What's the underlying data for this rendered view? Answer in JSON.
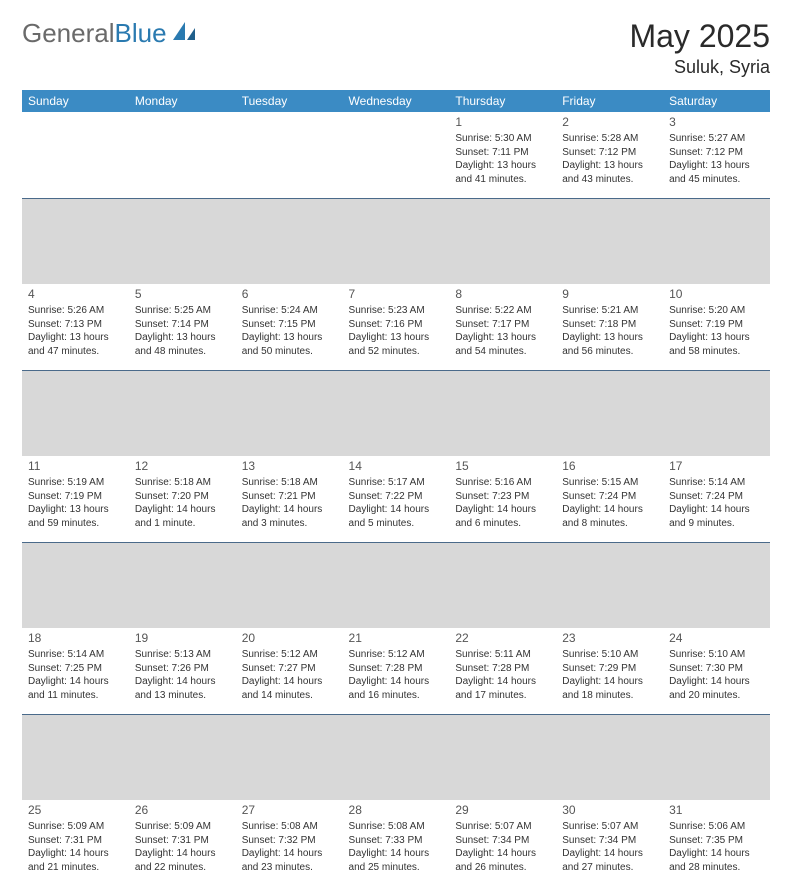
{
  "brand": {
    "part1": "General",
    "part2": "Blue"
  },
  "title": "May 2025",
  "location": "Suluk, Syria",
  "colors": {
    "header_bg": "#3b8bc4",
    "header_text": "#ffffff",
    "sep_bg": "#d8d8d8",
    "sep_border": "#4a6a8a",
    "brand_gray": "#6a6a6a",
    "brand_blue": "#2a7ab0",
    "text": "#333333",
    "page_bg": "#ffffff"
  },
  "day_headers": [
    "Sunday",
    "Monday",
    "Tuesday",
    "Wednesday",
    "Thursday",
    "Friday",
    "Saturday"
  ],
  "weeks": [
    [
      null,
      null,
      null,
      null,
      {
        "n": "1",
        "sr": "5:30 AM",
        "ss": "7:11 PM",
        "dl": "13 hours and 41 minutes."
      },
      {
        "n": "2",
        "sr": "5:28 AM",
        "ss": "7:12 PM",
        "dl": "13 hours and 43 minutes."
      },
      {
        "n": "3",
        "sr": "5:27 AM",
        "ss": "7:12 PM",
        "dl": "13 hours and 45 minutes."
      }
    ],
    [
      {
        "n": "4",
        "sr": "5:26 AM",
        "ss": "7:13 PM",
        "dl": "13 hours and 47 minutes."
      },
      {
        "n": "5",
        "sr": "5:25 AM",
        "ss": "7:14 PM",
        "dl": "13 hours and 48 minutes."
      },
      {
        "n": "6",
        "sr": "5:24 AM",
        "ss": "7:15 PM",
        "dl": "13 hours and 50 minutes."
      },
      {
        "n": "7",
        "sr": "5:23 AM",
        "ss": "7:16 PM",
        "dl": "13 hours and 52 minutes."
      },
      {
        "n": "8",
        "sr": "5:22 AM",
        "ss": "7:17 PM",
        "dl": "13 hours and 54 minutes."
      },
      {
        "n": "9",
        "sr": "5:21 AM",
        "ss": "7:18 PM",
        "dl": "13 hours and 56 minutes."
      },
      {
        "n": "10",
        "sr": "5:20 AM",
        "ss": "7:19 PM",
        "dl": "13 hours and 58 minutes."
      }
    ],
    [
      {
        "n": "11",
        "sr": "5:19 AM",
        "ss": "7:19 PM",
        "dl": "13 hours and 59 minutes."
      },
      {
        "n": "12",
        "sr": "5:18 AM",
        "ss": "7:20 PM",
        "dl": "14 hours and 1 minute."
      },
      {
        "n": "13",
        "sr": "5:18 AM",
        "ss": "7:21 PM",
        "dl": "14 hours and 3 minutes."
      },
      {
        "n": "14",
        "sr": "5:17 AM",
        "ss": "7:22 PM",
        "dl": "14 hours and 5 minutes."
      },
      {
        "n": "15",
        "sr": "5:16 AM",
        "ss": "7:23 PM",
        "dl": "14 hours and 6 minutes."
      },
      {
        "n": "16",
        "sr": "5:15 AM",
        "ss": "7:24 PM",
        "dl": "14 hours and 8 minutes."
      },
      {
        "n": "17",
        "sr": "5:14 AM",
        "ss": "7:24 PM",
        "dl": "14 hours and 9 minutes."
      }
    ],
    [
      {
        "n": "18",
        "sr": "5:14 AM",
        "ss": "7:25 PM",
        "dl": "14 hours and 11 minutes."
      },
      {
        "n": "19",
        "sr": "5:13 AM",
        "ss": "7:26 PM",
        "dl": "14 hours and 13 minutes."
      },
      {
        "n": "20",
        "sr": "5:12 AM",
        "ss": "7:27 PM",
        "dl": "14 hours and 14 minutes."
      },
      {
        "n": "21",
        "sr": "5:12 AM",
        "ss": "7:28 PM",
        "dl": "14 hours and 16 minutes."
      },
      {
        "n": "22",
        "sr": "5:11 AM",
        "ss": "7:28 PM",
        "dl": "14 hours and 17 minutes."
      },
      {
        "n": "23",
        "sr": "5:10 AM",
        "ss": "7:29 PM",
        "dl": "14 hours and 18 minutes."
      },
      {
        "n": "24",
        "sr": "5:10 AM",
        "ss": "7:30 PM",
        "dl": "14 hours and 20 minutes."
      }
    ],
    [
      {
        "n": "25",
        "sr": "5:09 AM",
        "ss": "7:31 PM",
        "dl": "14 hours and 21 minutes."
      },
      {
        "n": "26",
        "sr": "5:09 AM",
        "ss": "7:31 PM",
        "dl": "14 hours and 22 minutes."
      },
      {
        "n": "27",
        "sr": "5:08 AM",
        "ss": "7:32 PM",
        "dl": "14 hours and 23 minutes."
      },
      {
        "n": "28",
        "sr": "5:08 AM",
        "ss": "7:33 PM",
        "dl": "14 hours and 25 minutes."
      },
      {
        "n": "29",
        "sr": "5:07 AM",
        "ss": "7:34 PM",
        "dl": "14 hours and 26 minutes."
      },
      {
        "n": "30",
        "sr": "5:07 AM",
        "ss": "7:34 PM",
        "dl": "14 hours and 27 minutes."
      },
      {
        "n": "31",
        "sr": "5:06 AM",
        "ss": "7:35 PM",
        "dl": "14 hours and 28 minutes."
      }
    ]
  ],
  "labels": {
    "sunrise": "Sunrise:",
    "sunset": "Sunset:",
    "daylight": "Daylight:"
  }
}
